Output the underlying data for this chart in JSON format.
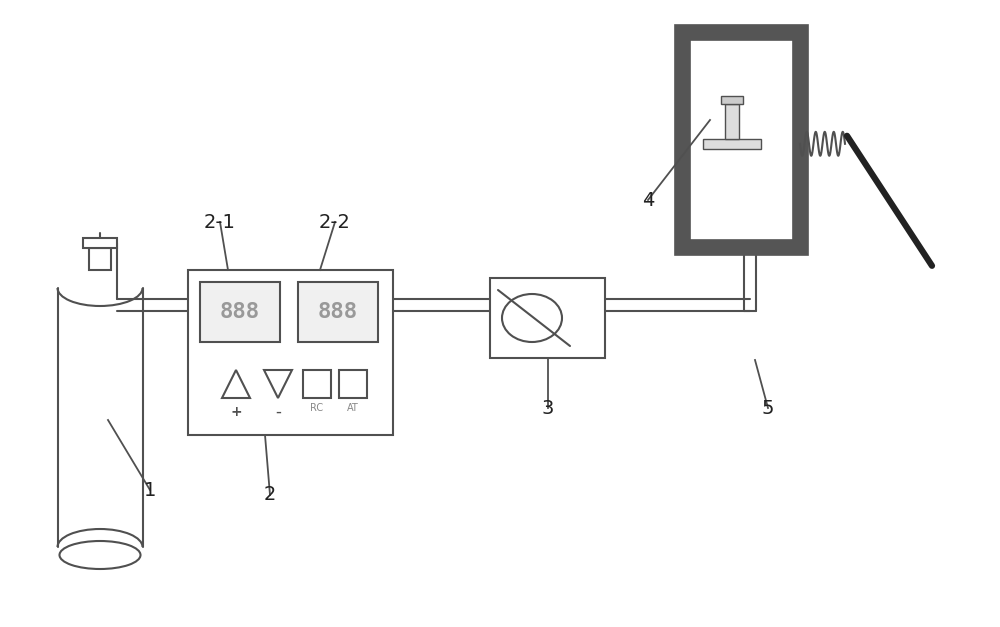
{
  "bg_color": "#ffffff",
  "line_color": "#505050",
  "dark_gray": "#555555",
  "label_color": "#222222",
  "figsize": [
    10.0,
    6.27
  ],
  "dpi": 100
}
